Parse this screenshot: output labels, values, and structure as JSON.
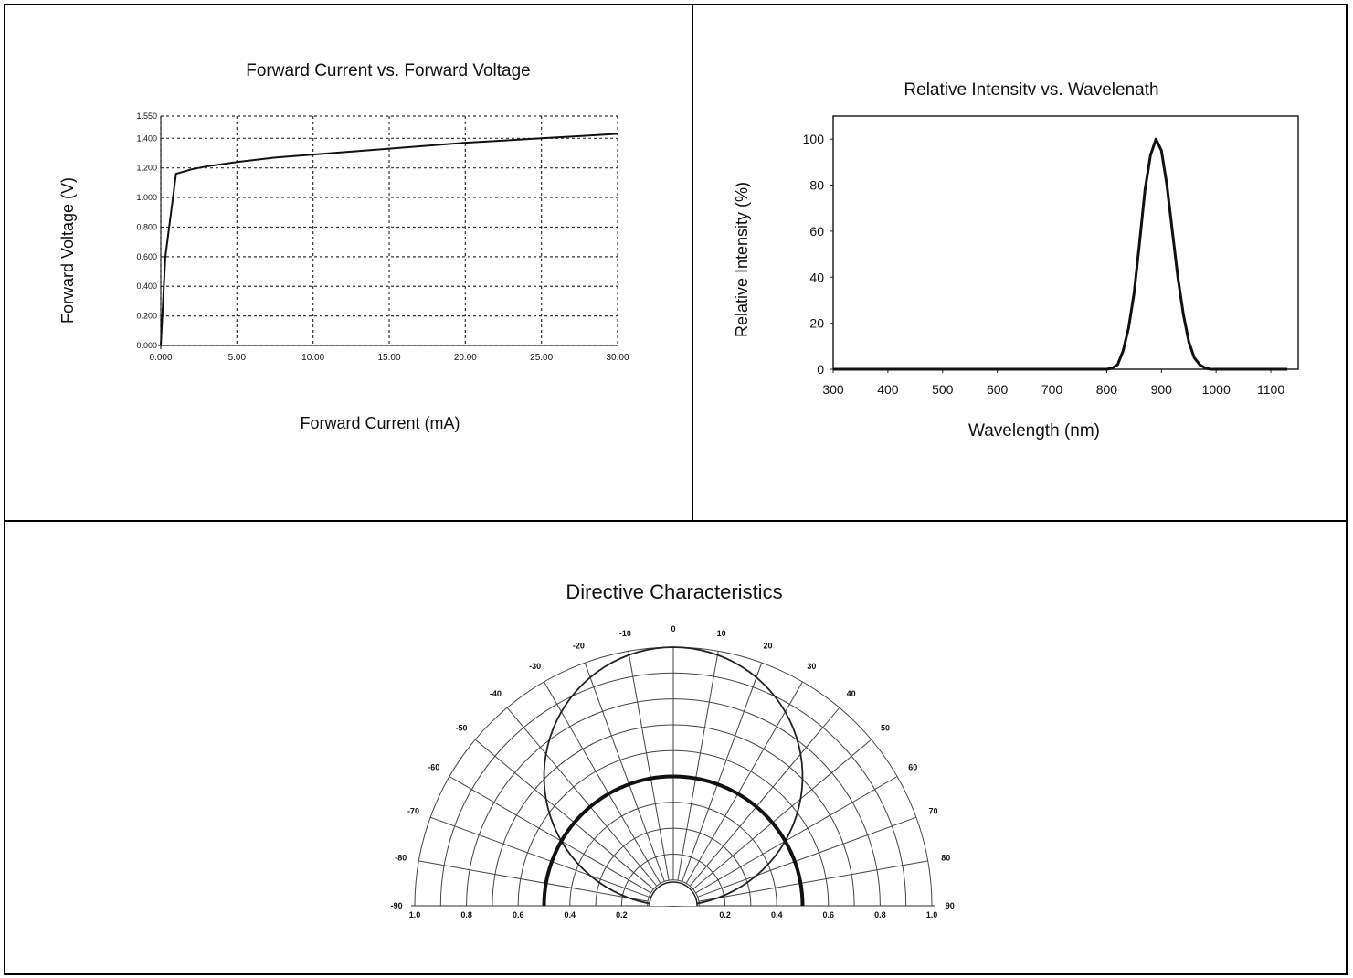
{
  "chart_data": [
    {
      "type": "line",
      "title": "Forward Current vs. Forward Voltage",
      "xlabel": "Forward Current (mA)",
      "ylabel": "Forward Voltage (V)",
      "xlim": [
        0,
        30
      ],
      "ylim": [
        0,
        1.55
      ],
      "grid": true,
      "x_ticks": [
        0,
        5,
        10,
        15,
        20,
        25,
        30
      ],
      "x_tick_labels": [
        "0.000",
        "5.00",
        "10.00",
        "15.00",
        "20.00",
        "25.00",
        "30.00"
      ],
      "y_ticks": [
        0,
        0.2,
        0.4,
        0.6,
        0.8,
        1.0,
        1.2,
        1.4,
        1.55
      ],
      "y_tick_labels": [
        "0.000",
        "0.200",
        "0.400",
        "0.600",
        "0.800",
        "1.000",
        "1.200",
        "1.400",
        "1.550"
      ],
      "series": [
        {
          "x": [
            0,
            0.3,
            1,
            2,
            3,
            5,
            7.5,
            10,
            12.5,
            15,
            17.5,
            20,
            22.5,
            25,
            27.5,
            30
          ],
          "values": [
            0,
            0.6,
            1.16,
            1.19,
            1.21,
            1.24,
            1.27,
            1.29,
            1.31,
            1.33,
            1.35,
            1.37,
            1.385,
            1.4,
            1.415,
            1.43
          ]
        }
      ]
    },
    {
      "type": "line",
      "title": "Relative Intensitv vs. Wavelenath",
      "xlabel": "Wavelength (nm)",
      "ylabel": "Relative Intensity (%)",
      "xlim": [
        300,
        1150
      ],
      "ylim": [
        0,
        110
      ],
      "grid": false,
      "x_ticks": [
        300,
        400,
        500,
        600,
        700,
        800,
        900,
        1000,
        1100
      ],
      "x_tick_labels": [
        "300",
        "400",
        "500",
        "600",
        "700",
        "800",
        "900",
        "1000",
        "1100"
      ],
      "y_ticks": [
        0,
        20,
        40,
        60,
        80,
        100
      ],
      "y_tick_labels": [
        "0",
        "20",
        "40",
        "60",
        "80",
        "100"
      ],
      "series": [
        {
          "x": [
            300,
            500,
            700,
            800,
            810,
            820,
            830,
            840,
            850,
            860,
            870,
            880,
            890,
            900,
            910,
            920,
            930,
            940,
            950,
            960,
            970,
            980,
            990,
            1000,
            1100,
            1130
          ],
          "values": [
            0,
            0,
            0,
            0,
            0.5,
            2,
            8,
            18,
            33,
            55,
            78,
            93,
            100,
            95,
            80,
            60,
            40,
            24,
            12,
            5,
            2,
            0.5,
            0,
            0,
            0,
            0
          ]
        }
      ]
    },
    {
      "type": "polar",
      "title": "Directive Characteristics",
      "angle_labels": [
        "-90",
        "-80",
        "-70",
        "-60",
        "-50",
        "-40",
        "-30",
        "-20",
        "-10",
        "0",
        "10",
        "20",
        "30",
        "40",
        "50",
        "60",
        "70",
        "80",
        "90"
      ],
      "angles": [
        -90,
        -80,
        -70,
        -60,
        -50,
        -40,
        -30,
        -20,
        -10,
        0,
        10,
        20,
        30,
        40,
        50,
        60,
        70,
        80,
        90
      ],
      "radial_labels_left": [
        "1.0",
        "0.8",
        "0.6",
        "0.4",
        "0.2"
      ],
      "radial_labels_right": [
        "0.2",
        "0.4",
        "0.6",
        "0.8",
        "1.0"
      ],
      "radial_ticks": [
        0.2,
        0.4,
        0.6,
        0.8,
        1.0
      ],
      "series": [
        {
          "angles": [
            -90,
            -60,
            -30,
            0,
            30,
            60,
            90
          ],
          "values": [
            0,
            0.5,
            0.866,
            1.0,
            0.866,
            0.5,
            0
          ]
        },
        {
          "angles": [
            -90,
            -45,
            0,
            45,
            90
          ],
          "values": [
            0.5,
            0.5,
            0.5,
            0.5,
            0.5
          ]
        }
      ]
    }
  ]
}
